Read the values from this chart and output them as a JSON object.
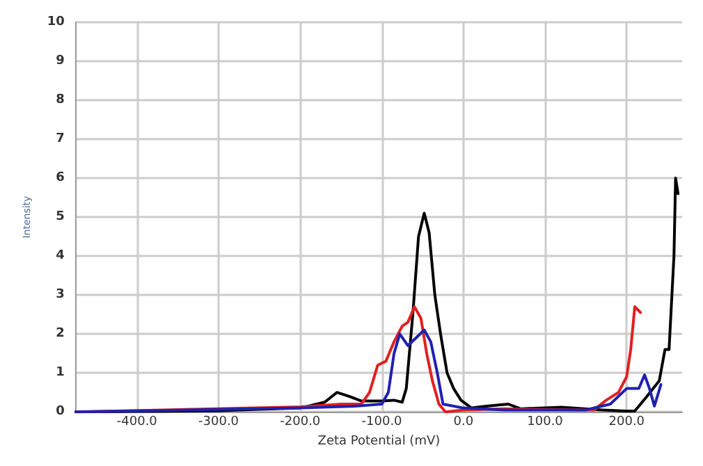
{
  "chart_data": {
    "type": "line",
    "xlabel": "Zeta Potential (mV)",
    "ylabel": "Intensity",
    "xlim": [
      -475,
      268
    ],
    "xticks": [
      {
        "value": -400,
        "label": "-400.0"
      },
      {
        "value": -300,
        "label": "-300.0"
      },
      {
        "value": -200,
        "label": "-200.0"
      },
      {
        "value": -100,
        "label": "-100.0"
      },
      {
        "value": 0,
        "label": "0.0"
      },
      {
        "value": 100,
        "label": "100.0"
      },
      {
        "value": 200,
        "label": "200.0"
      }
    ],
    "ylim": [
      0,
      10
    ],
    "yticks": [
      0,
      1,
      2,
      3,
      4,
      5,
      6,
      7,
      8,
      9,
      10
    ],
    "grid": true,
    "marker": "none",
    "line_style": "solid",
    "series": [
      {
        "color": "#000000",
        "x": [
          -475,
          -300,
          -200,
          -170,
          -155,
          -140,
          -125,
          -100,
          -85,
          -75,
          -70,
          -62,
          -55,
          -48,
          -42,
          -35,
          -28,
          -20,
          -12,
          -3,
          10,
          30,
          55,
          70,
          120,
          170,
          200,
          210,
          225,
          240,
          247,
          252,
          258,
          260,
          263
        ],
        "values": [
          0,
          0.03,
          0.1,
          0.25,
          0.5,
          0.4,
          0.28,
          0.28,
          0.3,
          0.25,
          0.6,
          2.5,
          4.5,
          5.1,
          4.6,
          3,
          2,
          1,
          0.6,
          0.3,
          0.1,
          0.15,
          0.2,
          0.08,
          0.12,
          0.05,
          0.02,
          0.02,
          0.4,
          0.8,
          1.6,
          1.6,
          4,
          6,
          5.6
        ]
      },
      {
        "color": "#e02020",
        "x": [
          -475,
          -200,
          -150,
          -125,
          -115,
          -105,
          -95,
          -85,
          -75,
          -68,
          -60,
          -52,
          -45,
          -38,
          -30,
          -22,
          0,
          50,
          100,
          160,
          175,
          190,
          200,
          205,
          210,
          217
        ],
        "values": [
          0,
          0.13,
          0.2,
          0.2,
          0.5,
          1.2,
          1.3,
          1.8,
          2.2,
          2.3,
          2.7,
          2.4,
          1.5,
          0.8,
          0.2,
          0,
          0.05,
          0.08,
          0.06,
          0.05,
          0.3,
          0.5,
          0.9,
          1.6,
          2.7,
          2.55
        ]
      },
      {
        "color": "#2020b0",
        "x": [
          -475,
          -200,
          -130,
          -100,
          -92,
          -85,
          -78,
          -68,
          -58,
          -48,
          -40,
          -32,
          -25,
          0,
          50,
          150,
          180,
          200,
          215,
          222,
          228,
          234,
          242
        ],
        "values": [
          0,
          0.1,
          0.15,
          0.2,
          0.5,
          1.5,
          2,
          1.7,
          1.9,
          2.1,
          1.8,
          1,
          0.2,
          0.1,
          0.05,
          0.05,
          0.2,
          0.6,
          0.6,
          0.95,
          0.6,
          0.15,
          0.7
        ]
      }
    ]
  }
}
